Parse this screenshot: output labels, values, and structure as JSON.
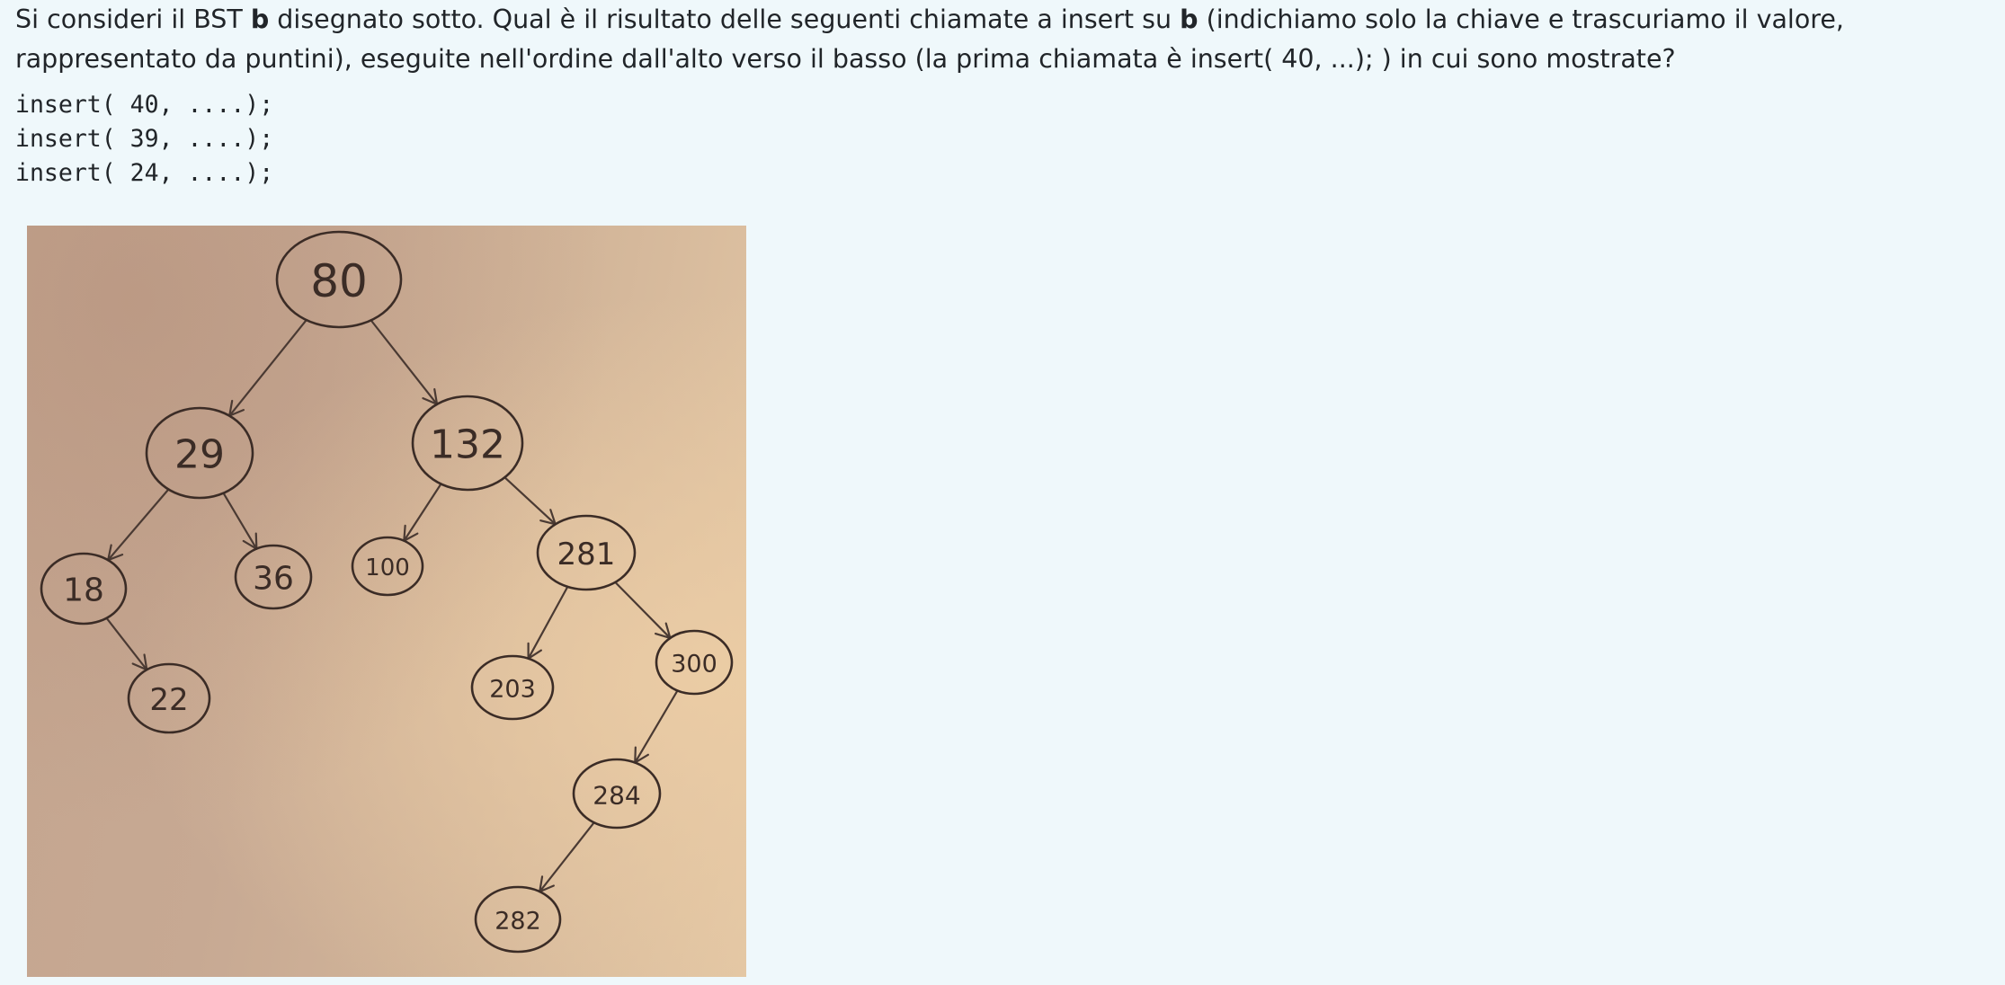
{
  "question": {
    "part1": "Si consideri il BST ",
    "bold1": "b",
    "part2": " disegnato sotto. Qual è il risultato delle seguenti chiamate a insert su ",
    "bold2": "b",
    "part3": " (indichiamo solo la chiave e trascuriamo il valore, rappresentato da puntini), eseguite nell'ordine dall'alto verso il basso (la prima chiamata è insert( 40, ...); )  in cui sono mostrate?"
  },
  "code_lines": [
    "insert( 40, ....);",
    "insert( 39, ....);",
    "insert( 24, ....);"
  ],
  "tree": {
    "nodes": [
      {
        "id": "n80",
        "label": "80"
      },
      {
        "id": "n29",
        "label": "29"
      },
      {
        "id": "n132",
        "label": "132"
      },
      {
        "id": "n18",
        "label": "18"
      },
      {
        "id": "n36",
        "label": "36"
      },
      {
        "id": "n100",
        "label": "100"
      },
      {
        "id": "n281",
        "label": "281"
      },
      {
        "id": "n22",
        "label": "22"
      },
      {
        "id": "n203",
        "label": "203"
      },
      {
        "id": "n300",
        "label": "300"
      },
      {
        "id": "n284",
        "label": "284"
      },
      {
        "id": "n282",
        "label": "282"
      }
    ],
    "edges": [
      {
        "from": "n80",
        "to": "n29"
      },
      {
        "from": "n80",
        "to": "n132"
      },
      {
        "from": "n29",
        "to": "n18"
      },
      {
        "from": "n29",
        "to": "n36"
      },
      {
        "from": "n132",
        "to": "n100"
      },
      {
        "from": "n132",
        "to": "n281"
      },
      {
        "from": "n18",
        "to": "n22"
      },
      {
        "from": "n281",
        "to": "n203"
      },
      {
        "from": "n281",
        "to": "n300"
      },
      {
        "from": "n300",
        "to": "n284"
      },
      {
        "from": "n284",
        "to": "n282"
      }
    ]
  },
  "colors": {
    "page_background": "#eff8fb",
    "text": "#212529",
    "ink": "#3b2c26"
  }
}
